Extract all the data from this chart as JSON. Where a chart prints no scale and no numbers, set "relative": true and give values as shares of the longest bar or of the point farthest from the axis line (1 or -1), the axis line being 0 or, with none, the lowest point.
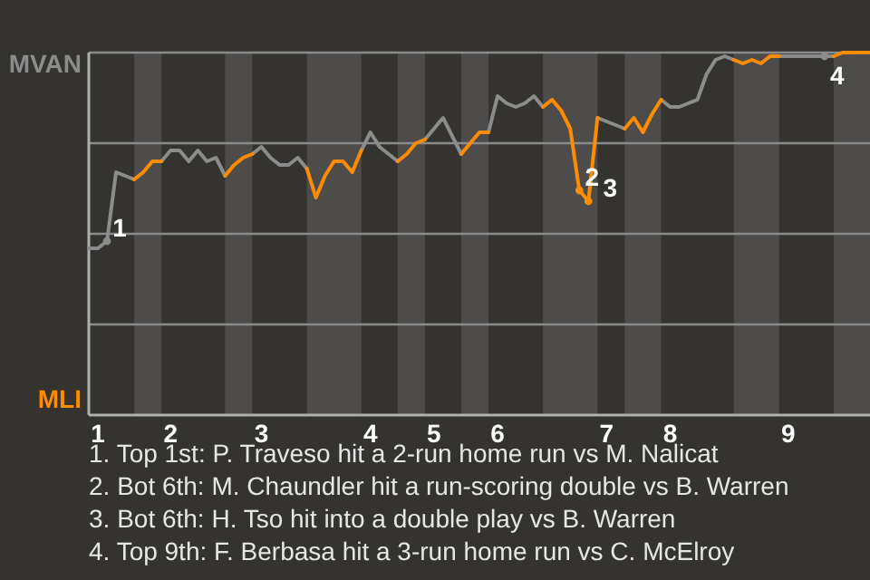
{
  "chart_data": {
    "type": "line",
    "relative": true,
    "categories": [
      null,
      "1",
      null,
      null,
      null,
      null,
      null,
      null,
      null,
      "2",
      null,
      null,
      null,
      null,
      null,
      null,
      null,
      null,
      null,
      "3",
      null,
      null,
      null,
      null,
      null,
      null,
      null,
      null,
      null,
      null,
      null,
      "4",
      null,
      null,
      null,
      null,
      null,
      null,
      "5",
      null,
      null,
      null,
      null,
      null,
      null,
      "6",
      null,
      null,
      null,
      null,
      null,
      null,
      null,
      null,
      null,
      null,
      null,
      "7",
      null,
      null,
      null,
      null,
      null,
      null,
      "8",
      null,
      null,
      null,
      null,
      null,
      null,
      null,
      null,
      null,
      null,
      null,
      null,
      "9",
      null,
      null,
      null,
      null,
      null,
      null,
      null,
      null,
      null
    ],
    "grid": "y",
    "legend": false,
    "marker": "none",
    "line_style": "solid",
    "series": [
      {
        "color": "#8c8c8c",
        "values": [
          0.46,
          0.46,
          0.48,
          0.67,
          0.66,
          0.65,
          null,
          null,
          0.7,
          0.73,
          0.73,
          0.7,
          0.73,
          0.7,
          0.71,
          0.66,
          null,
          null,
          0.72,
          0.74,
          0.71,
          0.69,
          0.69,
          0.71,
          0.68,
          null,
          null,
          null,
          null,
          null,
          0.73,
          0.78,
          0.74,
          0.72,
          0.7,
          null,
          null,
          0.76,
          0.79,
          0.82,
          0.77,
          0.72,
          null,
          null,
          0.78,
          0.88,
          0.86,
          0.85,
          0.86,
          0.88,
          0.85,
          null,
          null,
          null,
          null,
          null,
          0.82,
          0.81,
          0.8,
          0.79,
          null,
          null,
          null,
          0.87,
          0.85,
          0.85,
          0.86,
          0.87,
          0.94,
          0.98,
          0.99,
          0.98,
          null,
          null,
          null,
          null,
          0.99,
          0.99,
          0.99,
          0.99,
          0.99,
          0.99,
          0.99,
          null,
          null,
          null,
          null
        ]
      },
      {
        "color": "#ff8c00",
        "values": [
          null,
          null,
          null,
          null,
          null,
          0.65,
          0.67,
          0.7,
          0.7,
          null,
          null,
          null,
          null,
          null,
          null,
          0.66,
          0.69,
          0.71,
          0.72,
          null,
          null,
          null,
          null,
          null,
          0.68,
          0.6,
          0.66,
          0.7,
          0.7,
          0.67,
          0.73,
          null,
          null,
          null,
          0.7,
          0.72,
          0.75,
          0.76,
          null,
          null,
          null,
          0.72,
          0.75,
          0.78,
          0.78,
          null,
          null,
          null,
          null,
          null,
          0.85,
          0.87,
          0.84,
          0.79,
          0.62,
          0.59,
          0.82,
          null,
          null,
          0.79,
          0.82,
          0.78,
          0.83,
          0.87,
          null,
          null,
          null,
          null,
          null,
          null,
          null,
          0.98,
          0.97,
          0.98,
          0.97,
          0.99,
          0.99,
          null,
          null,
          null,
          null,
          null,
          0.99,
          1,
          1,
          1,
          1
        ]
      },
      {
        "type": "scatter",
        "name": "1",
        "color": "#8c8c8c",
        "marker": "circle",
        "values": [
          null,
          null,
          0.48,
          null,
          null,
          null,
          null,
          null,
          null,
          null,
          null,
          null,
          null,
          null,
          null,
          null,
          null,
          null,
          null,
          null,
          null,
          null,
          null,
          null,
          null,
          null,
          null,
          null,
          null,
          null,
          null,
          null,
          null,
          null,
          null,
          null,
          null,
          null,
          null,
          null,
          null,
          null,
          null,
          null,
          null,
          null,
          null,
          null,
          null,
          null,
          null,
          null,
          null,
          null,
          null,
          null,
          null,
          null,
          null,
          null,
          null,
          null,
          null,
          null,
          null,
          null,
          null,
          null,
          null,
          null,
          null,
          null,
          null,
          null,
          null,
          null,
          null,
          null,
          null,
          null,
          null,
          null,
          null,
          null,
          null,
          null,
          null
        ]
      },
      {
        "type": "scatter",
        "name": "2",
        "color": "#ff8c00",
        "marker": "circle",
        "values": [
          null,
          null,
          null,
          null,
          null,
          null,
          null,
          null,
          null,
          null,
          null,
          null,
          null,
          null,
          null,
          null,
          null,
          null,
          null,
          null,
          null,
          null,
          null,
          null,
          null,
          null,
          null,
          null,
          null,
          null,
          null,
          null,
          null,
          null,
          null,
          null,
          null,
          null,
          null,
          null,
          null,
          null,
          null,
          null,
          null,
          null,
          null,
          null,
          null,
          null,
          null,
          null,
          null,
          null,
          0.62,
          null,
          null,
          null,
          null,
          null,
          null,
          null,
          null,
          null,
          null,
          null,
          null,
          null,
          null,
          null,
          null,
          null,
          null,
          null,
          null,
          null,
          null,
          null,
          null,
          null,
          null,
          null,
          null,
          null,
          null,
          null,
          null
        ]
      },
      {
        "type": "scatter",
        "name": "3",
        "color": "#ff8c00",
        "marker": "circle",
        "values": [
          null,
          null,
          null,
          null,
          null,
          null,
          null,
          null,
          null,
          null,
          null,
          null,
          null,
          null,
          null,
          null,
          null,
          null,
          null,
          null,
          null,
          null,
          null,
          null,
          null,
          null,
          null,
          null,
          null,
          null,
          null,
          null,
          null,
          null,
          null,
          null,
          null,
          null,
          null,
          null,
          null,
          null,
          null,
          null,
          null,
          null,
          null,
          null,
          null,
          null,
          null,
          null,
          null,
          null,
          null,
          0.59,
          null,
          null,
          null,
          null,
          null,
          null,
          null,
          null,
          null,
          null,
          null,
          null,
          null,
          null,
          null,
          null,
          null,
          null,
          null,
          null,
          null,
          null,
          null,
          null,
          null,
          null,
          null,
          null,
          null,
          null,
          null
        ]
      },
      {
        "type": "scatter",
        "name": "4",
        "color": "#8c8c8c",
        "marker": "circle",
        "values": [
          null,
          null,
          null,
          null,
          null,
          null,
          null,
          null,
          null,
          null,
          null,
          null,
          null,
          null,
          null,
          null,
          null,
          null,
          null,
          null,
          null,
          null,
          null,
          null,
          null,
          null,
          null,
          null,
          null,
          null,
          null,
          null,
          null,
          null,
          null,
          null,
          null,
          null,
          null,
          null,
          null,
          null,
          null,
          null,
          null,
          null,
          null,
          null,
          null,
          null,
          null,
          null,
          null,
          null,
          null,
          null,
          null,
          null,
          null,
          null,
          null,
          null,
          null,
          null,
          null,
          null,
          null,
          null,
          null,
          null,
          null,
          null,
          null,
          null,
          null,
          null,
          null,
          null,
          null,
          null,
          null,
          0.99,
          null,
          null,
          null,
          null,
          null
        ]
      }
    ],
    "annotations": [
      "MVAN",
      "MLI",
      "1. Top 1st: P. Traveso hit a 2-run home run vs M. Nalicat",
      "2. Bot 6th: M. Chaundler hit a run-scoring double vs B. Warren",
      "3. Bot 6th: H. Tso hit into a double play vs B. Warren",
      "4. Top 9th: F. Berbasa hit a 3-run home run vs C. McElroy"
    ]
  }
}
